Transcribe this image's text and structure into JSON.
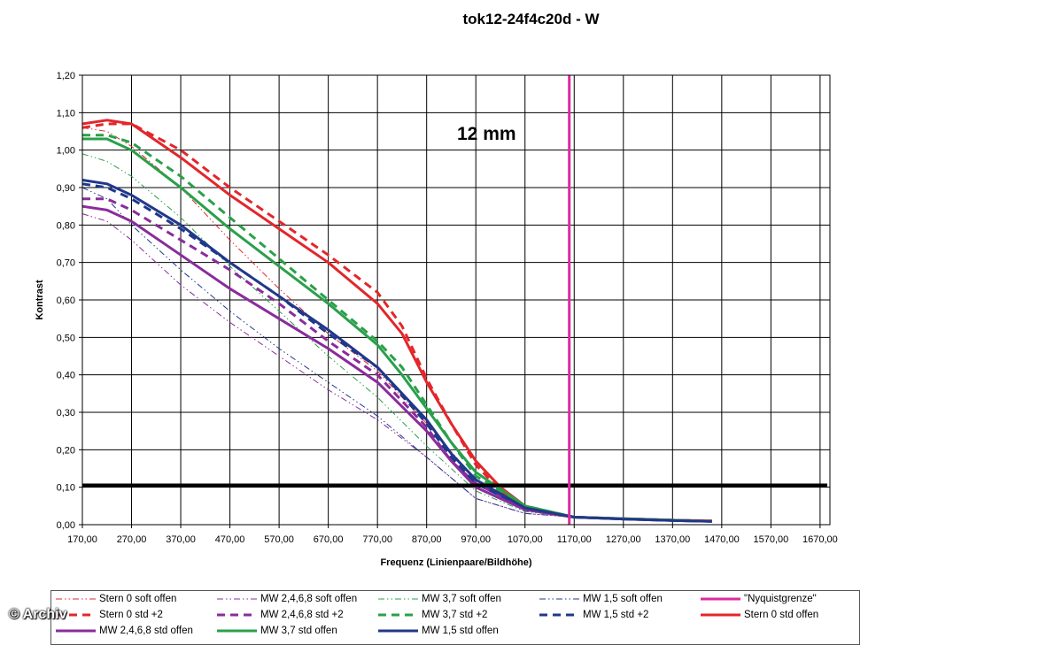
{
  "title": "tok12-24f4c20d - W",
  "annotation": "12 mm",
  "watermark": "© Archiv",
  "chart_data": {
    "type": "line",
    "title": "tok12-24f4c20d - W",
    "xlabel": "Frequenz (Linienpaare/Bildhöhe)",
    "ylabel": "Kontrast",
    "xlim": [
      170,
      1690
    ],
    "ylim": [
      0,
      1.2
    ],
    "grid": true,
    "xticks": [
      "170,00",
      "270,00",
      "370,00",
      "470,00",
      "570,00",
      "670,00",
      "770,00",
      "870,00",
      "970,00",
      "1070,00",
      "1170,00",
      "1270,00",
      "1370,00",
      "1470,00",
      "1570,00",
      "1670,00"
    ],
    "yticks": [
      "0,00",
      "0,10",
      "0,20",
      "0,30",
      "0,40",
      "0,50",
      "0,60",
      "0,70",
      "0,80",
      "0,90",
      "1,00",
      "1,10",
      "1,20"
    ],
    "annotations": [
      "12 mm"
    ],
    "reference_lines": [
      {
        "orientation": "horizontal",
        "value": 0.105,
        "color": "#000000"
      },
      {
        "orientation": "vertical",
        "value": 1160,
        "color": "#dd2c9c",
        "series": "\"Nyquistgrenze\""
      }
    ],
    "legend_placement": "bottom",
    "series": [
      {
        "name": "Stern 0 soft offen",
        "color": "#e3262b",
        "style": "dashdotdot",
        "width": 1,
        "points": [
          [
            170,
            1.06
          ],
          [
            220,
            1.05
          ],
          [
            270,
            1.01
          ],
          [
            370,
            0.9
          ],
          [
            470,
            0.76
          ],
          [
            570,
            0.63
          ],
          [
            670,
            0.51
          ],
          [
            770,
            0.41
          ],
          [
            870,
            0.27
          ],
          [
            970,
            0.12
          ],
          [
            1070,
            0.04
          ],
          [
            1170,
            0.02
          ],
          [
            1270,
            0.016
          ],
          [
            1370,
            0.012
          ],
          [
            1450,
            0.01
          ]
        ]
      },
      {
        "name": "MW 2,4,6,8 soft offen",
        "color": "#8a2c9c",
        "style": "dashdotdot",
        "width": 1,
        "points": [
          [
            170,
            0.83
          ],
          [
            220,
            0.81
          ],
          [
            270,
            0.76
          ],
          [
            370,
            0.64
          ],
          [
            470,
            0.54
          ],
          [
            570,
            0.45
          ],
          [
            670,
            0.36
          ],
          [
            770,
            0.28
          ],
          [
            870,
            0.18
          ],
          [
            970,
            0.07
          ],
          [
            1070,
            0.03
          ],
          [
            1170,
            0.02
          ],
          [
            1270,
            0.015
          ],
          [
            1370,
            0.011
          ],
          [
            1450,
            0.009
          ]
        ]
      },
      {
        "name": "MW 3,7 soft offen",
        "color": "#2aa04a",
        "style": "dashdotdot",
        "width": 1,
        "points": [
          [
            170,
            0.99
          ],
          [
            220,
            0.97
          ],
          [
            270,
            0.93
          ],
          [
            370,
            0.82
          ],
          [
            470,
            0.69
          ],
          [
            570,
            0.57
          ],
          [
            670,
            0.45
          ],
          [
            770,
            0.34
          ],
          [
            870,
            0.21
          ],
          [
            970,
            0.09
          ],
          [
            1070,
            0.035
          ],
          [
            1170,
            0.02
          ],
          [
            1270,
            0.015
          ],
          [
            1370,
            0.011
          ],
          [
            1450,
            0.009
          ]
        ]
      },
      {
        "name": "MW 1,5 soft offen",
        "color": "#20388a",
        "style": "dashdotdot",
        "width": 1,
        "points": [
          [
            170,
            0.9
          ],
          [
            220,
            0.87
          ],
          [
            270,
            0.8
          ],
          [
            370,
            0.68
          ],
          [
            470,
            0.57
          ],
          [
            570,
            0.47
          ],
          [
            670,
            0.38
          ],
          [
            770,
            0.29
          ],
          [
            870,
            0.18
          ],
          [
            970,
            0.07
          ],
          [
            1070,
            0.03
          ],
          [
            1170,
            0.02
          ],
          [
            1270,
            0.015
          ],
          [
            1370,
            0.011
          ],
          [
            1450,
            0.009
          ]
        ]
      },
      {
        "name": "\"Nyquistgrenze\"",
        "color": "#dd2c9c",
        "style": "solid",
        "width": 3,
        "points": [
          [
            1160,
            0
          ],
          [
            1160,
            1.2
          ]
        ]
      },
      {
        "name": "Stern 0 std +2",
        "color": "#e3262b",
        "style": "dashed",
        "width": 3,
        "points": [
          [
            170,
            1.06
          ],
          [
            220,
            1.07
          ],
          [
            270,
            1.07
          ],
          [
            370,
            1.0
          ],
          [
            470,
            0.9
          ],
          [
            570,
            0.81
          ],
          [
            670,
            0.72
          ],
          [
            770,
            0.62
          ],
          [
            820,
            0.53
          ],
          [
            870,
            0.39
          ],
          [
            920,
            0.27
          ],
          [
            970,
            0.16
          ],
          [
            1020,
            0.09
          ],
          [
            1070,
            0.05
          ],
          [
            1120,
            0.03
          ],
          [
            1170,
            0.02
          ],
          [
            1270,
            0.016
          ],
          [
            1370,
            0.012
          ],
          [
            1450,
            0.01
          ]
        ]
      },
      {
        "name": "MW 2,4,6,8 std +2",
        "color": "#8a2c9c",
        "style": "dashed",
        "width": 3,
        "points": [
          [
            170,
            0.87
          ],
          [
            220,
            0.87
          ],
          [
            270,
            0.84
          ],
          [
            370,
            0.76
          ],
          [
            470,
            0.68
          ],
          [
            570,
            0.59
          ],
          [
            670,
            0.49
          ],
          [
            770,
            0.4
          ],
          [
            870,
            0.26
          ],
          [
            920,
            0.17
          ],
          [
            970,
            0.11
          ],
          [
            1070,
            0.045
          ],
          [
            1170,
            0.02
          ],
          [
            1270,
            0.015
          ],
          [
            1370,
            0.011
          ],
          [
            1450,
            0.009
          ]
        ]
      },
      {
        "name": "MW 3,7 std +2",
        "color": "#2aa04a",
        "style": "dashed",
        "width": 3,
        "points": [
          [
            170,
            1.04
          ],
          [
            220,
            1.04
          ],
          [
            270,
            1.02
          ],
          [
            370,
            0.93
          ],
          [
            470,
            0.82
          ],
          [
            570,
            0.71
          ],
          [
            670,
            0.6
          ],
          [
            770,
            0.49
          ],
          [
            820,
            0.42
          ],
          [
            870,
            0.32
          ],
          [
            920,
            0.22
          ],
          [
            970,
            0.13
          ],
          [
            1070,
            0.05
          ],
          [
            1170,
            0.02
          ],
          [
            1270,
            0.016
          ],
          [
            1370,
            0.012
          ],
          [
            1450,
            0.009
          ]
        ]
      },
      {
        "name": "MW 1,5 std +2",
        "color": "#20388a",
        "style": "dashed",
        "width": 3,
        "points": [
          [
            170,
            0.91
          ],
          [
            220,
            0.9
          ],
          [
            270,
            0.87
          ],
          [
            370,
            0.79
          ],
          [
            470,
            0.7
          ],
          [
            570,
            0.61
          ],
          [
            670,
            0.51
          ],
          [
            770,
            0.42
          ],
          [
            870,
            0.27
          ],
          [
            920,
            0.18
          ],
          [
            970,
            0.11
          ],
          [
            1070,
            0.045
          ],
          [
            1170,
            0.02
          ],
          [
            1270,
            0.015
          ],
          [
            1370,
            0.011
          ],
          [
            1450,
            0.009
          ]
        ]
      },
      {
        "name": "Stern 0 std offen",
        "color": "#e3262b",
        "style": "solid",
        "width": 3,
        "points": [
          [
            170,
            1.07
          ],
          [
            220,
            1.08
          ],
          [
            270,
            1.07
          ],
          [
            370,
            0.98
          ],
          [
            470,
            0.88
          ],
          [
            570,
            0.79
          ],
          [
            670,
            0.7
          ],
          [
            770,
            0.59
          ],
          [
            820,
            0.51
          ],
          [
            870,
            0.38
          ],
          [
            920,
            0.27
          ],
          [
            970,
            0.17
          ],
          [
            1020,
            0.1
          ],
          [
            1070,
            0.05
          ],
          [
            1120,
            0.03
          ],
          [
            1170,
            0.02
          ],
          [
            1270,
            0.016
          ],
          [
            1370,
            0.012
          ],
          [
            1450,
            0.01
          ]
        ]
      },
      {
        "name": "MW 2,4,6,8 std offen",
        "color": "#8a2c9c",
        "style": "solid",
        "width": 3,
        "points": [
          [
            170,
            0.85
          ],
          [
            220,
            0.84
          ],
          [
            270,
            0.81
          ],
          [
            370,
            0.72
          ],
          [
            470,
            0.63
          ],
          [
            570,
            0.55
          ],
          [
            670,
            0.47
          ],
          [
            770,
            0.38
          ],
          [
            870,
            0.25
          ],
          [
            920,
            0.17
          ],
          [
            970,
            0.1
          ],
          [
            1070,
            0.04
          ],
          [
            1170,
            0.02
          ],
          [
            1270,
            0.015
          ],
          [
            1370,
            0.011
          ],
          [
            1450,
            0.009
          ]
        ]
      },
      {
        "name": "MW 3,7 std offen",
        "color": "#2aa04a",
        "style": "solid",
        "width": 3,
        "points": [
          [
            170,
            1.03
          ],
          [
            220,
            1.03
          ],
          [
            270,
            1.0
          ],
          [
            370,
            0.9
          ],
          [
            470,
            0.79
          ],
          [
            570,
            0.69
          ],
          [
            670,
            0.59
          ],
          [
            770,
            0.48
          ],
          [
            820,
            0.4
          ],
          [
            870,
            0.31
          ],
          [
            920,
            0.22
          ],
          [
            970,
            0.14
          ],
          [
            1070,
            0.05
          ],
          [
            1170,
            0.02
          ],
          [
            1270,
            0.016
          ],
          [
            1370,
            0.012
          ],
          [
            1450,
            0.009
          ]
        ]
      },
      {
        "name": "MW 1,5 std offen",
        "color": "#20388a",
        "style": "solid",
        "width": 3,
        "points": [
          [
            170,
            0.92
          ],
          [
            220,
            0.91
          ],
          [
            270,
            0.88
          ],
          [
            370,
            0.8
          ],
          [
            470,
            0.7
          ],
          [
            570,
            0.61
          ],
          [
            670,
            0.52
          ],
          [
            770,
            0.42
          ],
          [
            870,
            0.28
          ],
          [
            920,
            0.19
          ],
          [
            970,
            0.12
          ],
          [
            1070,
            0.045
          ],
          [
            1170,
            0.02
          ],
          [
            1270,
            0.015
          ],
          [
            1370,
            0.011
          ],
          [
            1450,
            0.009
          ]
        ]
      }
    ]
  }
}
